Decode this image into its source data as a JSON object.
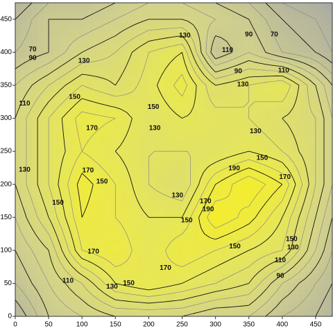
{
  "chart_data": {
    "type": "contour",
    "x": [
      0,
      50,
      100,
      150,
      200,
      250,
      300,
      350,
      400,
      450,
      475
    ],
    "y": [
      0,
      50,
      100,
      150,
      200,
      250,
      300,
      350,
      400,
      450,
      475
    ],
    "z": [
      [
        60,
        90,
        100,
        110,
        110,
        110,
        100,
        100,
        80,
        70,
        60
      ],
      [
        80,
        100,
        120,
        150,
        160,
        150,
        140,
        130,
        100,
        80,
        70
      ],
      [
        90,
        110,
        160,
        170,
        150,
        170,
        160,
        150,
        140,
        100,
        80
      ],
      [
        100,
        130,
        170,
        160,
        150,
        150,
        190,
        175,
        150,
        110,
        90
      ],
      [
        110,
        140,
        175,
        160,
        140,
        130,
        170,
        190,
        170,
        120,
        100
      ],
      [
        110,
        140,
        160,
        150,
        140,
        140,
        140,
        150,
        140,
        120,
        100
      ],
      [
        110,
        140,
        165,
        160,
        140,
        150,
        145,
        140,
        130,
        120,
        100
      ],
      [
        100,
        120,
        140,
        130,
        145,
        165,
        130,
        140,
        150,
        110,
        90
      ],
      [
        80,
        90,
        110,
        120,
        140,
        150,
        80,
        100,
        80,
        70,
        60
      ],
      [
        70,
        90,
        90,
        100,
        110,
        110,
        100,
        90,
        70,
        60,
        50
      ],
      [
        60,
        80,
        80,
        90,
        100,
        100,
        90,
        80,
        60,
        50,
        40
      ]
    ],
    "levels": [
      60,
      70,
      80,
      90,
      100,
      110,
      120,
      130,
      140,
      150,
      160,
      170,
      180,
      190
    ],
    "colorscale": [
      [
        40,
        "#a8a8a6"
      ],
      [
        100,
        "#d2d28c"
      ],
      [
        150,
        "#e6e65a"
      ],
      [
        200,
        "#f8f020"
      ]
    ],
    "xlim": [
      0,
      475
    ],
    "ylim": [
      0,
      475
    ],
    "xticks": [
      0,
      50,
      100,
      150,
      200,
      250,
      300,
      350,
      400,
      450
    ],
    "yticks": [
      0,
      50,
      100,
      150,
      200,
      250,
      300,
      350,
      400,
      450
    ],
    "annotations": [
      {
        "text": "70",
        "x": 26,
        "y": 404
      },
      {
        "text": "90",
        "x": 26,
        "y": 391
      },
      {
        "text": "130",
        "x": 103,
        "y": 387
      },
      {
        "text": "130",
        "x": 254,
        "y": 425
      },
      {
        "text": "90",
        "x": 350,
        "y": 427
      },
      {
        "text": "70",
        "x": 388,
        "y": 427
      },
      {
        "text": "110",
        "x": 318,
        "y": 403
      },
      {
        "text": "90",
        "x": 334,
        "y": 371
      },
      {
        "text": "110",
        "x": 402,
        "y": 372
      },
      {
        "text": "130",
        "x": 341,
        "y": 351
      },
      {
        "text": "110",
        "x": 14,
        "y": 322
      },
      {
        "text": "150",
        "x": 89,
        "y": 332
      },
      {
        "text": "150",
        "x": 207,
        "y": 317
      },
      {
        "text": "170",
        "x": 115,
        "y": 285
      },
      {
        "text": "130",
        "x": 209,
        "y": 285
      },
      {
        "text": "130",
        "x": 360,
        "y": 280
      },
      {
        "text": "150",
        "x": 370,
        "y": 240
      },
      {
        "text": "190",
        "x": 328,
        "y": 224
      },
      {
        "text": "170",
        "x": 109,
        "y": 221
      },
      {
        "text": "170",
        "x": 404,
        "y": 211
      },
      {
        "text": "130",
        "x": 14,
        "y": 222
      },
      {
        "text": "150",
        "x": 130,
        "y": 204
      },
      {
        "text": "130",
        "x": 243,
        "y": 183
      },
      {
        "text": "150",
        "x": 64,
        "y": 172
      },
      {
        "text": "170",
        "x": 285,
        "y": 174
      },
      {
        "text": "190",
        "x": 289,
        "y": 162
      },
      {
        "text": "150",
        "x": 257,
        "y": 145
      },
      {
        "text": "150",
        "x": 414,
        "y": 117
      },
      {
        "text": "130",
        "x": 416,
        "y": 104
      },
      {
        "text": "150",
        "x": 329,
        "y": 106
      },
      {
        "text": "170",
        "x": 117,
        "y": 98
      },
      {
        "text": "110",
        "x": 397,
        "y": 85
      },
      {
        "text": "170",
        "x": 225,
        "y": 73
      },
      {
        "text": "90",
        "x": 397,
        "y": 61
      },
      {
        "text": "110",
        "x": 79,
        "y": 54
      },
      {
        "text": "150",
        "x": 170,
        "y": 50
      },
      {
        "text": "130",
        "x": 145,
        "y": 45
      }
    ]
  }
}
